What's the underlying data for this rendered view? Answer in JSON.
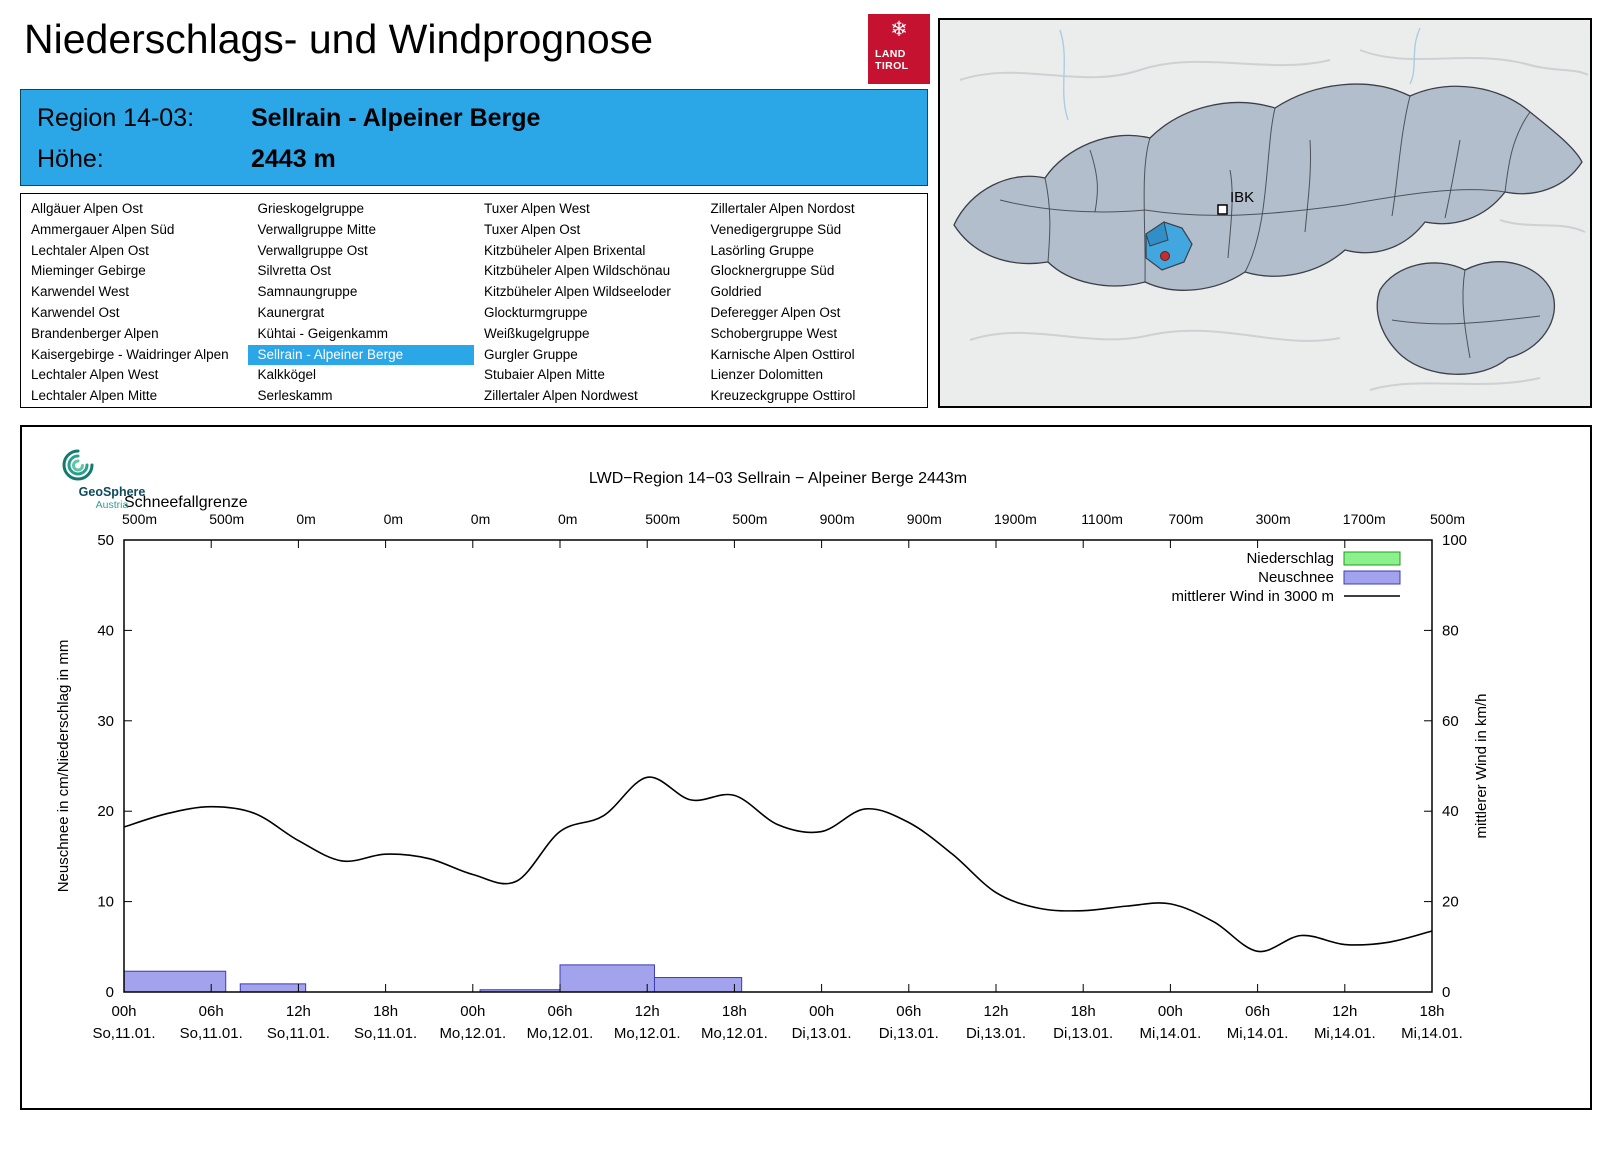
{
  "page": {
    "title": "Niederschlags- und Windprognose"
  },
  "logo_land_tirol": {
    "line1": "LAND",
    "line2": "TIROL"
  },
  "geosphere_logo": {
    "line1": "GeoSphere",
    "line2": "Austria"
  },
  "header": {
    "region_label": "Region 14-03:",
    "region_value": "Sellrain - Alpeiner Berge",
    "altitude_label": "Höhe:",
    "altitude_value": "2443 m"
  },
  "theme": {
    "accent_blue": "#2BA7E8",
    "tirol_red": "#C41230",
    "map_region_fill": "#B2BECB",
    "map_region_border": "#3B4048",
    "map_highlight": "#42A7DE",
    "map_marker_red": "#C03030"
  },
  "region_list": {
    "selected": "Sellrain - Alpeiner Berge",
    "columns": [
      [
        "Allgäuer Alpen Ost",
        "Ammergauer Alpen Süd",
        "Lechtaler Alpen Ost",
        "Mieminger Gebirge",
        "Karwendel West",
        "Karwendel Ost",
        "Brandenberger Alpen",
        "Kaisergebirge - Waidringer Alpen",
        "Lechtaler Alpen West",
        "Lechtaler Alpen Mitte"
      ],
      [
        "Grieskogelgruppe",
        "Verwallgruppe Mitte",
        "Verwallgruppe Ost",
        "Silvretta Ost",
        "Samnaungruppe",
        "Kaunergrat",
        "Kühtai - Geigenkamm",
        "Sellrain - Alpeiner Berge",
        "Kalkkögel",
        "Serleskamm"
      ],
      [
        "Tuxer Alpen West",
        "Tuxer Alpen Ost",
        "Kitzbüheler Alpen Brixental",
        "Kitzbüheler Alpen Wildschönau",
        "Kitzbüheler Alpen Wildseeloder",
        "Glockturmgruppe",
        "Weißkugelgruppe",
        "Gurgler Gruppe",
        "Stubaier Alpen Mitte",
        "Zillertaler Alpen Nordwest"
      ],
      [
        "Zillertaler Alpen Nordost",
        "Venedigergruppe Süd",
        "Lasörling Gruppe",
        "Glocknergruppe Süd",
        "Goldried",
        "Deferegger Alpen Ost",
        "Schobergruppe West",
        "Karnische Alpen Osttirol",
        "Lienzer Dolomitten",
        "Kreuzeckgruppe Osttirol"
      ]
    ]
  },
  "map": {
    "city_label": "IBK"
  },
  "chart_data": {
    "type": "mixed",
    "title": "LWD−Region 14−03 Sellrain − Alpeiner Berge 2443m",
    "top_axis_label": "Schneefallgrenze",
    "snowline_labels": [
      "500m",
      "500m",
      "0m",
      "0m",
      "0m",
      "0m",
      "500m",
      "500m",
      "900m",
      "900m",
      "1900m",
      "1100m",
      "700m",
      "300m",
      "1700m",
      "500m"
    ],
    "ylabel_left": "Neuschnee in cm/Niederschlag in mm",
    "ylabel_right": "mittlerer Wind in km/h",
    "ylim_left": [
      0,
      50
    ],
    "ylim_right": [
      0,
      100
    ],
    "yticks_left": [
      0,
      10,
      20,
      30,
      40,
      50
    ],
    "yticks_right": [
      0,
      20,
      40,
      60,
      80,
      100
    ],
    "x_hours_range": [
      0,
      90
    ],
    "xtick_step_hours": 6,
    "xticks": [
      {
        "hour": "00h",
        "date": "So,11.01."
      },
      {
        "hour": "06h",
        "date": "So,11.01."
      },
      {
        "hour": "12h",
        "date": "So,11.01."
      },
      {
        "hour": "18h",
        "date": "So,11.01."
      },
      {
        "hour": "00h",
        "date": "Mo,12.01."
      },
      {
        "hour": "06h",
        "date": "Mo,12.01."
      },
      {
        "hour": "12h",
        "date": "Mo,12.01."
      },
      {
        "hour": "18h",
        "date": "Mo,12.01."
      },
      {
        "hour": "00h",
        "date": "Di,13.01."
      },
      {
        "hour": "06h",
        "date": "Di,13.01."
      },
      {
        "hour": "12h",
        "date": "Di,13.01."
      },
      {
        "hour": "18h",
        "date": "Di,13.01."
      },
      {
        "hour": "00h",
        "date": "Mi,14.01."
      },
      {
        "hour": "06h",
        "date": "Mi,14.01."
      },
      {
        "hour": "12h",
        "date": "Mi,14.01."
      },
      {
        "hour": "18h",
        "date": "Mi,14.01."
      }
    ],
    "legend": [
      {
        "label": "Niederschlag",
        "type": "box",
        "fill": "#8CF08C",
        "stroke": "#1E9E1E"
      },
      {
        "label": "Neuschnee",
        "type": "box",
        "fill": "#A3A3ED",
        "stroke": "#3C3CB4"
      },
      {
        "label": "mittlerer Wind in 3000 m",
        "type": "line",
        "stroke": "#000000"
      }
    ],
    "colors": {
      "niederschlag_fill": "#8CF08C",
      "niederschlag_stroke": "#1E9E1E",
      "neuschnee_fill": "#A3A3ED",
      "neuschnee_stroke": "#3C3CB4",
      "wind_line": "#000000"
    },
    "niederschlag_bars": [],
    "neuschnee_bars": [
      {
        "start_h": 0,
        "end_h": 7,
        "value": 2.3
      },
      {
        "start_h": 8,
        "end_h": 12.5,
        "value": 0.9
      },
      {
        "start_h": 24.5,
        "end_h": 30,
        "value": 0.25
      },
      {
        "start_h": 30,
        "end_h": 36.5,
        "value": 3.0
      },
      {
        "start_h": 36.5,
        "end_h": 42.5,
        "value": 1.6
      }
    ],
    "wind_series": {
      "name": "mittlerer Wind in 3000 m",
      "step_hours": 3,
      "values_kmh": [
        36.5,
        39.5,
        41,
        39.5,
        33.5,
        29,
        30.5,
        29.5,
        26,
        24.5,
        35.5,
        39,
        47.5,
        42.5,
        43.5,
        37,
        35.5,
        40.5,
        37.5,
        30.5,
        22,
        18.5,
        18,
        19,
        19.5,
        15.5,
        9,
        12.5,
        10.5,
        11,
        13.5
      ]
    }
  }
}
